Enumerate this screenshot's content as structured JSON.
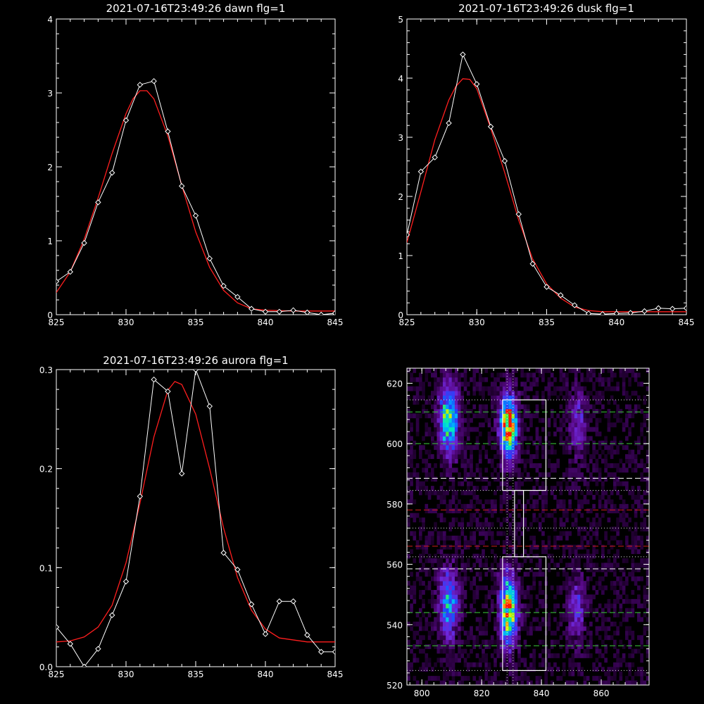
{
  "colors": {
    "background": "#000000",
    "axes": "#ffffff",
    "observed": "#ffffff",
    "fit": "#ff1e1e",
    "green_line": "#3ccc3c",
    "red_line": "#d21e1e",
    "white_dash": "#ffffff",
    "dotted": "#dddddd"
  },
  "chart_data": [
    {
      "type": "line",
      "title": "2021-07-16T23:49:26 dawn flg=1",
      "xlabel": "",
      "ylabel": "",
      "xlim": [
        825,
        845
      ],
      "ylim": [
        0,
        4
      ],
      "xticks": [
        825,
        830,
        835,
        840,
        845
      ],
      "yticks": [
        0,
        1,
        2,
        3,
        4
      ],
      "grid": false,
      "series": [
        {
          "marker": "diamond",
          "x": [
            825,
            826,
            827,
            828,
            829,
            830,
            831,
            832,
            833,
            834,
            835,
            836,
            837,
            838,
            839,
            840,
            841,
            842,
            843,
            844,
            845
          ],
          "y": [
            0.45,
            0.58,
            0.97,
            1.52,
            1.92,
            2.63,
            3.11,
            3.16,
            2.48,
            1.74,
            1.34,
            0.76,
            0.39,
            0.24,
            0.08,
            0.04,
            0.04,
            0.06,
            0.03,
            0.0,
            0.02
          ]
        },
        {
          "marker": "none",
          "x": [
            825,
            826,
            827,
            828,
            829,
            830,
            830.5,
            831,
            831.5,
            832,
            833,
            834,
            835,
            836,
            837,
            838,
            839,
            840,
            842,
            845
          ],
          "y": [
            0.3,
            0.58,
            1.02,
            1.58,
            2.18,
            2.72,
            2.92,
            3.03,
            3.03,
            2.92,
            2.42,
            1.75,
            1.12,
            0.64,
            0.33,
            0.16,
            0.08,
            0.06,
            0.05,
            0.05
          ]
        }
      ]
    },
    {
      "type": "line",
      "title": "2021-07-16T23:49:26 dusk flg=1",
      "xlabel": "",
      "ylabel": "",
      "xlim": [
        825,
        845
      ],
      "ylim": [
        0,
        5
      ],
      "xticks": [
        825,
        830,
        835,
        840,
        845
      ],
      "yticks": [
        0,
        1,
        2,
        3,
        4,
        5
      ],
      "grid": false,
      "series": [
        {
          "marker": "diamond",
          "x": [
            825,
            826,
            827,
            828,
            829,
            830,
            831,
            832,
            833,
            834,
            835,
            836,
            837,
            838,
            839,
            840,
            841,
            842,
            843,
            844,
            845
          ],
          "y": [
            1.35,
            2.42,
            2.66,
            3.24,
            4.4,
            3.9,
            3.18,
            2.6,
            1.7,
            0.86,
            0.47,
            0.33,
            0.16,
            0.02,
            0.01,
            0.02,
            0.03,
            0.06,
            0.11,
            0.1,
            0.11
          ]
        },
        {
          "marker": "none",
          "x": [
            825,
            826,
            827,
            828,
            828.5,
            829,
            829.5,
            830,
            831,
            832,
            833,
            834,
            835,
            836,
            837,
            838,
            839,
            840,
            842,
            845
          ],
          "y": [
            1.22,
            2.08,
            2.96,
            3.63,
            3.86,
            3.99,
            3.98,
            3.82,
            3.15,
            2.4,
            1.6,
            0.94,
            0.52,
            0.28,
            0.13,
            0.07,
            0.05,
            0.05,
            0.05,
            0.05
          ]
        }
      ]
    },
    {
      "type": "line",
      "title": "2021-07-16T23:49:26 aurora flg=1",
      "xlabel": "",
      "ylabel": "",
      "xlim": [
        825,
        845
      ],
      "ylim": [
        0,
        0.3
      ],
      "xticks": [
        825,
        830,
        835,
        840,
        845
      ],
      "yticks": [
        0.0,
        0.1,
        0.2,
        0.3
      ],
      "ytick_labels": [
        "0.0",
        "0.1",
        "0.2",
        "0.3"
      ],
      "grid": false,
      "series": [
        {
          "marker": "diamond",
          "x": [
            825,
            826,
            827,
            828,
            829,
            830,
            831,
            832,
            833,
            834,
            835,
            836,
            837,
            838,
            839,
            840,
            841,
            842,
            843,
            844,
            845
          ],
          "y": [
            0.04,
            0.023,
            0.0,
            0.018,
            0.052,
            0.086,
            0.172,
            0.29,
            0.278,
            0.195,
            0.3,
            0.263,
            0.115,
            0.098,
            0.063,
            0.033,
            0.066,
            0.066,
            0.032,
            0.015,
            0.015
          ]
        },
        {
          "marker": "none",
          "x": [
            825,
            826,
            827,
            828,
            829,
            830,
            831,
            832,
            833,
            833.5,
            834,
            835,
            836,
            837,
            838,
            839,
            840,
            841,
            843,
            845
          ],
          "y": [
            0.025,
            0.026,
            0.03,
            0.04,
            0.062,
            0.105,
            0.165,
            0.232,
            0.279,
            0.288,
            0.285,
            0.255,
            0.2,
            0.14,
            0.09,
            0.057,
            0.038,
            0.029,
            0.025,
            0.025
          ]
        }
      ]
    },
    {
      "type": "heatmap",
      "title": "",
      "xlabel": "",
      "ylabel": "",
      "xlim": [
        795,
        876
      ],
      "ylim": [
        520,
        625
      ],
      "xticks": [
        800,
        820,
        840,
        860
      ],
      "yticks": [
        520,
        540,
        560,
        580,
        600,
        620
      ],
      "grid": false,
      "emission_bands": [
        {
          "x_center": 809,
          "y_center": 608,
          "x_sigma": 2.2,
          "y_sigma": 7.5,
          "peak": 0.75
        },
        {
          "x_center": 809,
          "y_center": 547,
          "x_sigma": 2.2,
          "y_sigma": 8.0,
          "peak": 0.55
        },
        {
          "x_center": 829,
          "y_center": 606,
          "x_sigma": 2.0,
          "y_sigma": 7.0,
          "peak": 1.0
        },
        {
          "x_center": 829,
          "y_center": 545,
          "x_sigma": 2.0,
          "y_sigma": 8.0,
          "peak": 0.9
        },
        {
          "x_center": 852,
          "y_center": 607,
          "x_sigma": 2.0,
          "y_sigma": 8.0,
          "peak": 0.28
        },
        {
          "x_center": 852,
          "y_center": 545,
          "x_sigma": 2.0,
          "y_sigma": 7.0,
          "peak": 0.3
        }
      ],
      "vertical_dotted_lines": [
        828.5,
        830.5
      ],
      "horizontal_lines": [
        {
          "y": 614.5,
          "style": "dotted",
          "color": "#dddddd"
        },
        {
          "y": 610.5,
          "style": "dashed",
          "color": "#3ccc3c"
        },
        {
          "y": 600.0,
          "style": "dashed",
          "color": "#3ccc3c"
        },
        {
          "y": 588.5,
          "style": "dashed",
          "color": "#ffffff"
        },
        {
          "y": 584.5,
          "style": "dotted",
          "color": "#dddddd"
        },
        {
          "y": 578.0,
          "style": "dashed",
          "color": "#d21e1e"
        },
        {
          "y": 572.0,
          "style": "dotted",
          "color": "#dddddd"
        },
        {
          "y": 566.0,
          "style": "dashed",
          "color": "#d21e1e"
        },
        {
          "y": 562.5,
          "style": "dotted",
          "color": "#dddddd"
        },
        {
          "y": 558.5,
          "style": "dashed",
          "color": "#ffffff"
        },
        {
          "y": 544.0,
          "style": "dashed",
          "color": "#3ccc3c"
        },
        {
          "y": 533.0,
          "style": "dashed",
          "color": "#3ccc3c"
        },
        {
          "y": 524.8,
          "style": "dotted",
          "color": "#dddddd"
        }
      ],
      "boxes": [
        {
          "x0": 827.0,
          "x1": 841.5,
          "y0": 584.5,
          "y1": 614.5
        },
        {
          "x0": 827.0,
          "x1": 841.5,
          "y0": 524.8,
          "y1": 562.5
        },
        {
          "x0": 831.0,
          "x1": 834.0,
          "y0": 562.5,
          "y1": 584.5
        }
      ]
    }
  ]
}
